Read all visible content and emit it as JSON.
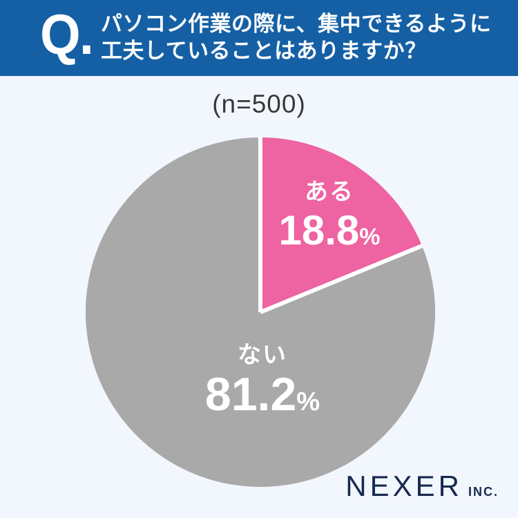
{
  "header": {
    "q_mark": "Q.",
    "question_line1": "パソコン作業の際に、集中できるように",
    "question_line2": "工夫していることはありますか？"
  },
  "chart_data": {
    "type": "pie",
    "title": "(n=500)",
    "labels": [
      "ある",
      "ない"
    ],
    "values": [
      18.8,
      81.2
    ],
    "value_suffix": "%",
    "colors": [
      "#ee63a1",
      "#a9a9a9"
    ],
    "separator_color": "#ffffff",
    "start_angle": "top",
    "direction": "clockwise",
    "legend": "none",
    "label_text_color": "#ffffff"
  },
  "footer": {
    "brand": "NEXER",
    "suffix": "INC."
  },
  "colors": {
    "header_bg": "#1560a5",
    "background": "#f2f6fd",
    "brand_navy": "#16294d",
    "sample_label_text": "#38383b"
  }
}
